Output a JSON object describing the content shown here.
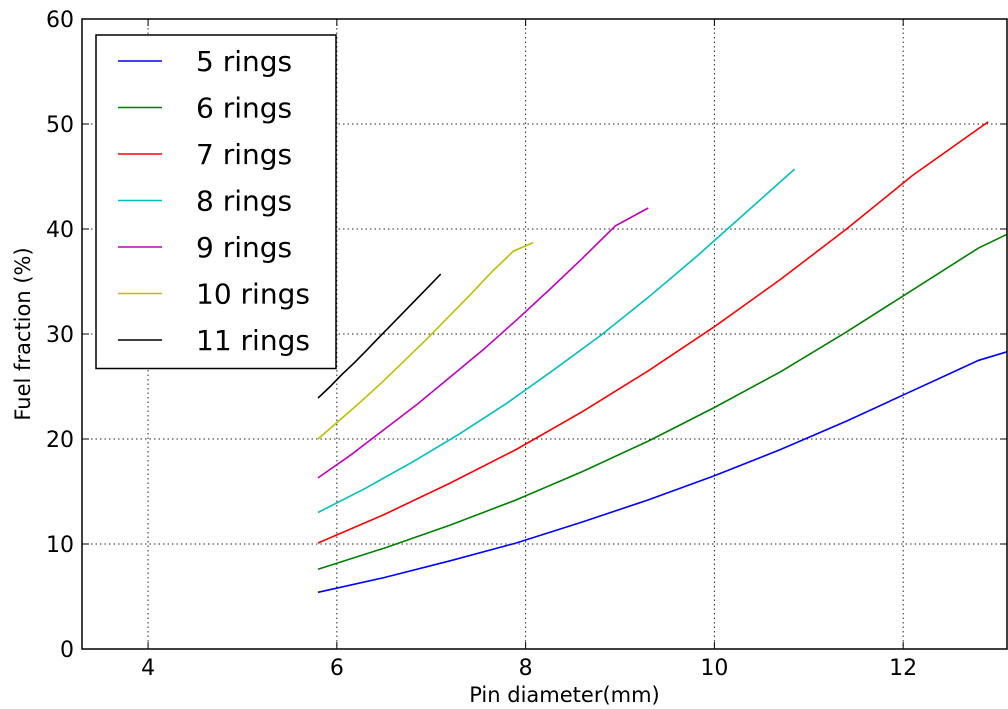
{
  "chart_data": {
    "type": "line",
    "title": "",
    "xlabel": "Pin diameter(mm)",
    "ylabel": "Fuel fraction (%)",
    "xlim": [
      3.3,
      13.1
    ],
    "ylim": [
      0,
      60
    ],
    "xticks": [
      4,
      6,
      8,
      10,
      12
    ],
    "yticks": [
      0,
      10,
      20,
      30,
      40,
      50,
      60
    ],
    "grid": true,
    "legend_position": "top-left",
    "series": [
      {
        "name": "5 rings",
        "color": "#0000ff",
        "x": [
          5.8,
          6.5,
          7.2,
          7.9,
          8.6,
          9.3,
          10.0,
          10.7,
          11.4,
          12.1,
          12.8,
          13.1
        ],
        "y": [
          5.4,
          6.8,
          8.4,
          10.1,
          12.1,
          14.2,
          16.5,
          19.0,
          21.7,
          24.6,
          27.5,
          28.3
        ]
      },
      {
        "name": "6 rings",
        "color": "#008000",
        "x": [
          5.8,
          6.5,
          7.2,
          7.9,
          8.6,
          9.3,
          10.0,
          10.7,
          11.4,
          12.1,
          12.8,
          13.1
        ],
        "y": [
          7.6,
          9.6,
          11.8,
          14.2,
          16.9,
          19.8,
          23.0,
          26.4,
          30.2,
          34.2,
          38.2,
          39.5
        ]
      },
      {
        "name": "7 rings",
        "color": "#ff0000",
        "x": [
          5.8,
          6.5,
          7.2,
          7.9,
          8.6,
          9.3,
          10.0,
          10.7,
          11.4,
          12.1,
          12.9
        ],
        "y": [
          10.1,
          12.8,
          15.8,
          19.0,
          22.6,
          26.5,
          30.7,
          35.2,
          40.0,
          45.1,
          50.2
        ]
      },
      {
        "name": "8 rings",
        "color": "#00bfbf",
        "x": [
          5.8,
          6.3,
          6.8,
          7.3,
          7.8,
          8.3,
          8.8,
          9.3,
          9.8,
          10.3,
          10.85
        ],
        "y": [
          13.0,
          15.3,
          17.8,
          20.5,
          23.4,
          26.6,
          29.9,
          33.5,
          37.3,
          41.3,
          45.7
        ]
      },
      {
        "name": "9 rings",
        "color": "#bf00bf",
        "x": [
          5.8,
          6.15,
          6.5,
          6.85,
          7.2,
          7.55,
          7.9,
          8.25,
          8.6,
          8.95,
          9.3
        ],
        "y": [
          16.3,
          18.5,
          20.9,
          23.3,
          25.9,
          28.5,
          31.3,
          34.2,
          37.2,
          40.3,
          42.0
        ]
      },
      {
        "name": "10 rings",
        "color": "#bfbf00",
        "x": [
          5.8,
          6.03,
          6.26,
          6.49,
          6.72,
          6.95,
          7.18,
          7.41,
          7.64,
          7.87,
          8.08
        ],
        "y": [
          20.0,
          21.8,
          23.6,
          25.5,
          27.5,
          29.5,
          31.6,
          33.7,
          35.9,
          37.9,
          38.7
        ]
      },
      {
        "name": "11 rings",
        "color": "#000000",
        "x": [
          5.8,
          5.93,
          6.06,
          6.19,
          6.32,
          6.45,
          6.58,
          6.71,
          6.84,
          6.97,
          7.1
        ],
        "y": [
          23.9,
          25.0,
          26.2,
          27.3,
          28.5,
          29.7,
          30.9,
          32.1,
          33.3,
          34.5,
          35.7
        ]
      }
    ]
  }
}
